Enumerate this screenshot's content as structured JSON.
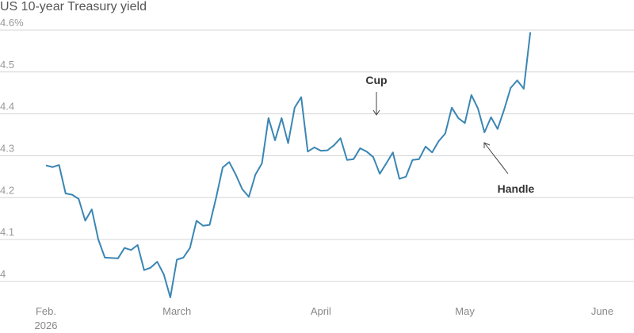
{
  "chart_data": {
    "type": "line",
    "title": "US 10-year Treasury yield",
    "categories": [
      "Feb.\n2026",
      null,
      null,
      null,
      null,
      null,
      null,
      null,
      null,
      null,
      null,
      null,
      null,
      null,
      null,
      null,
      null,
      null,
      null,
      null,
      "March",
      null,
      null,
      null,
      null,
      null,
      null,
      null,
      null,
      null,
      null,
      null,
      null,
      null,
      null,
      null,
      null,
      null,
      null,
      null,
      null,
      null,
      "April",
      null,
      null,
      null,
      null,
      null,
      null,
      null,
      null,
      null,
      null,
      null,
      null,
      null,
      null,
      null,
      null,
      null,
      null,
      null,
      null,
      null,
      "May",
      null,
      null,
      null,
      null,
      null,
      null,
      null,
      null,
      null,
      null,
      null,
      null,
      null,
      null,
      null,
      null,
      null,
      null,
      null,
      null,
      "June"
    ],
    "series": [
      {
        "name": "US 10-year Treasury yield",
        "color": "#3a86b4",
        "values": [
          4.277,
          4.273,
          4.278,
          4.21,
          4.207,
          4.197,
          4.145,
          4.172,
          4.1,
          4.057,
          4.056,
          4.055,
          4.08,
          4.075,
          4.087,
          4.027,
          4.033,
          4.047,
          4.017,
          3.962,
          4.052,
          4.057,
          4.08,
          4.145,
          4.133,
          4.135,
          4.2,
          4.272,
          4.285,
          4.255,
          4.22,
          4.202,
          4.255,
          4.282,
          4.39,
          4.337,
          4.39,
          4.33,
          4.415,
          4.44,
          4.31,
          4.32,
          4.312,
          4.313,
          4.325,
          4.342,
          4.29,
          4.292,
          4.318,
          4.31,
          4.297,
          4.257,
          4.282,
          4.308,
          4.245,
          4.25,
          4.29,
          4.292,
          4.322,
          4.308,
          4.335,
          4.353,
          4.415,
          4.39,
          4.378,
          4.445,
          4.413,
          4.356,
          4.392,
          4.364,
          4.41,
          4.462,
          4.48,
          4.46,
          4.595,
          null,
          null,
          null,
          null,
          null,
          null,
          null,
          null,
          null,
          null,
          null
        ]
      }
    ],
    "ylim": [
      3.95,
      4.62
    ],
    "yticks": [
      4,
      4.1,
      4.2,
      4.3,
      4.4,
      4.5,
      {
        "value": 4.6,
        "label": "4.6%"
      }
    ],
    "grid": true,
    "annotations": [
      "Cup",
      "Handle"
    ]
  }
}
